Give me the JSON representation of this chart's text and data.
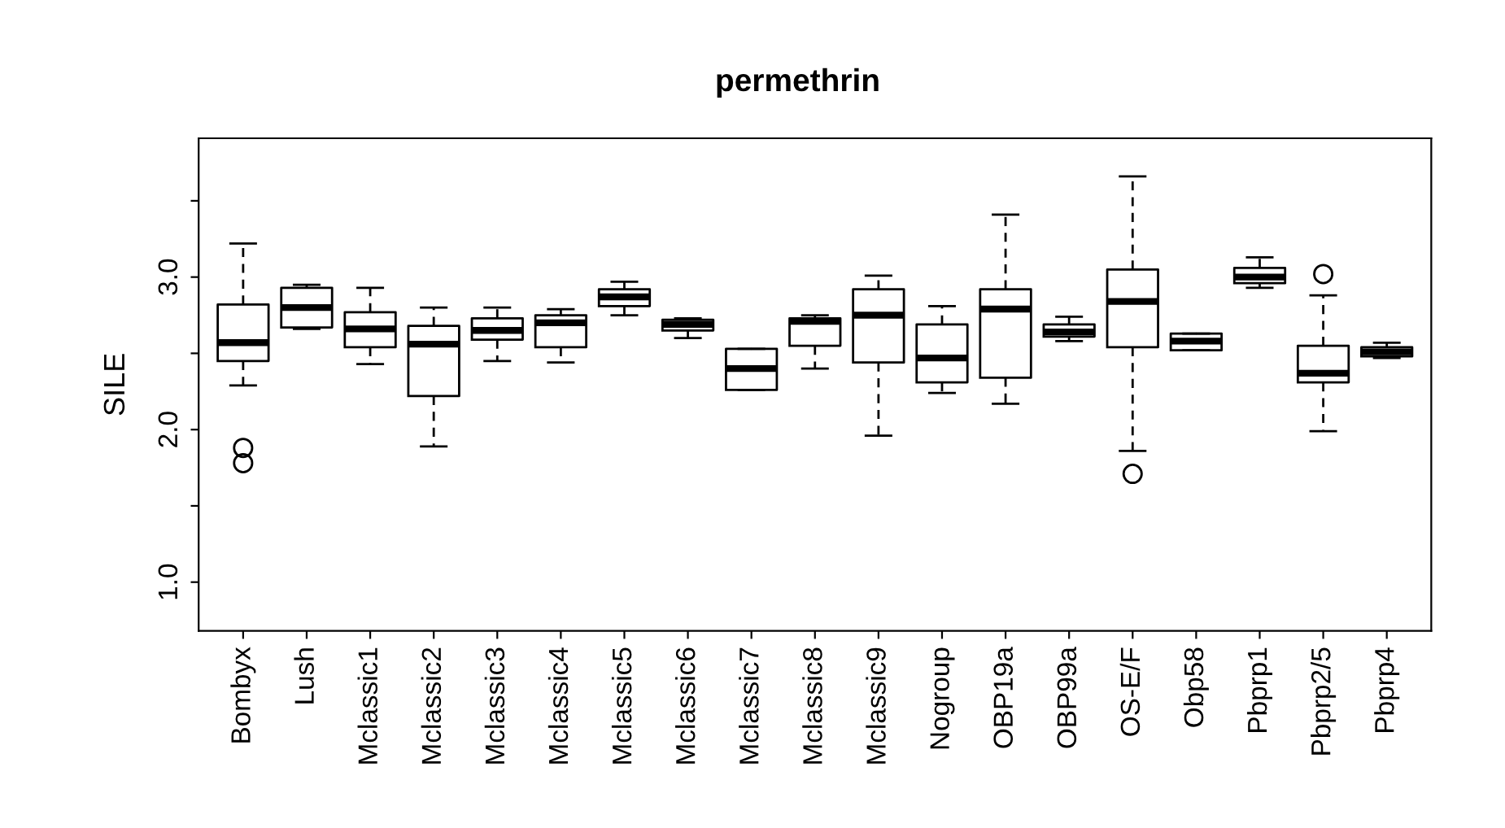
{
  "chart_data": {
    "type": "box",
    "title": "permethrin",
    "ylabel": "SILE",
    "categories": [
      "Bombyx",
      "Lush",
      "Mclassic1",
      "Mclassic2",
      "Mclassic3",
      "Mclassic4",
      "Mclassic5",
      "Mclassic6",
      "Mclassic7",
      "Mclassic8",
      "Mclassic9",
      "Nogroup",
      "OBP19a",
      "OBP99a",
      "OS-E/F",
      "Obp58",
      "Pbprp1",
      "Pbprp2/5",
      "Pbprp4"
    ],
    "boxes": [
      {
        "low": 2.29,
        "q1": 2.45,
        "median": 2.57,
        "q3": 2.82,
        "high": 3.22,
        "outliers": [
          1.88,
          1.78
        ]
      },
      {
        "low": 2.66,
        "q1": 2.67,
        "median": 2.8,
        "q3": 2.93,
        "high": 2.95
      },
      {
        "low": 2.43,
        "q1": 2.54,
        "median": 2.66,
        "q3": 2.77,
        "high": 2.93
      },
      {
        "low": 1.89,
        "q1": 2.22,
        "median": 2.56,
        "q3": 2.68,
        "high": 2.8
      },
      {
        "low": 2.45,
        "q1": 2.59,
        "median": 2.65,
        "q3": 2.73,
        "high": 2.8
      },
      {
        "low": 2.44,
        "q1": 2.54,
        "median": 2.7,
        "q3": 2.75,
        "high": 2.79
      },
      {
        "low": 2.75,
        "q1": 2.81,
        "median": 2.87,
        "q3": 2.92,
        "high": 2.97
      },
      {
        "low": 2.6,
        "q1": 2.65,
        "median": 2.69,
        "q3": 2.72,
        "high": 2.73
      },
      {
        "low": 2.26,
        "q1": 2.26,
        "median": 2.4,
        "q3": 2.53,
        "high": 2.53
      },
      {
        "low": 2.4,
        "q1": 2.55,
        "median": 2.71,
        "q3": 2.73,
        "high": 2.75
      },
      {
        "low": 1.96,
        "q1": 2.44,
        "median": 2.75,
        "q3": 2.92,
        "high": 3.01
      },
      {
        "low": 2.24,
        "q1": 2.31,
        "median": 2.47,
        "q3": 2.69,
        "high": 2.81
      },
      {
        "low": 2.17,
        "q1": 2.34,
        "median": 2.79,
        "q3": 2.92,
        "high": 3.41
      },
      {
        "low": 2.58,
        "q1": 2.61,
        "median": 2.64,
        "q3": 2.69,
        "high": 2.74
      },
      {
        "low": 1.86,
        "q1": 2.54,
        "median": 2.84,
        "q3": 3.05,
        "high": 3.66,
        "outliers": [
          1.71
        ]
      },
      {
        "low": 2.52,
        "q1": 2.52,
        "median": 2.58,
        "q3": 2.63,
        "high": 2.63
      },
      {
        "low": 2.93,
        "q1": 2.96,
        "median": 3.0,
        "q3": 3.06,
        "high": 3.13
      },
      {
        "low": 1.99,
        "q1": 2.31,
        "median": 2.37,
        "q3": 2.55,
        "high": 2.88,
        "outliers": [
          3.02
        ]
      },
      {
        "low": 2.47,
        "q1": 2.48,
        "median": 2.51,
        "q3": 2.54,
        "high": 2.57
      }
    ],
    "ylim": [
      0.68,
      3.91
    ],
    "yticks": [
      {
        "value": 1.0,
        "label": "1.0"
      },
      {
        "value": 1.5,
        "label": null
      },
      {
        "value": 2.0,
        "label": "2.0"
      },
      {
        "value": 2.5,
        "label": null
      },
      {
        "value": 3.0,
        "label": "3.0"
      },
      {
        "value": 3.5,
        "label": null
      }
    ],
    "grid": false,
    "legend": false
  }
}
